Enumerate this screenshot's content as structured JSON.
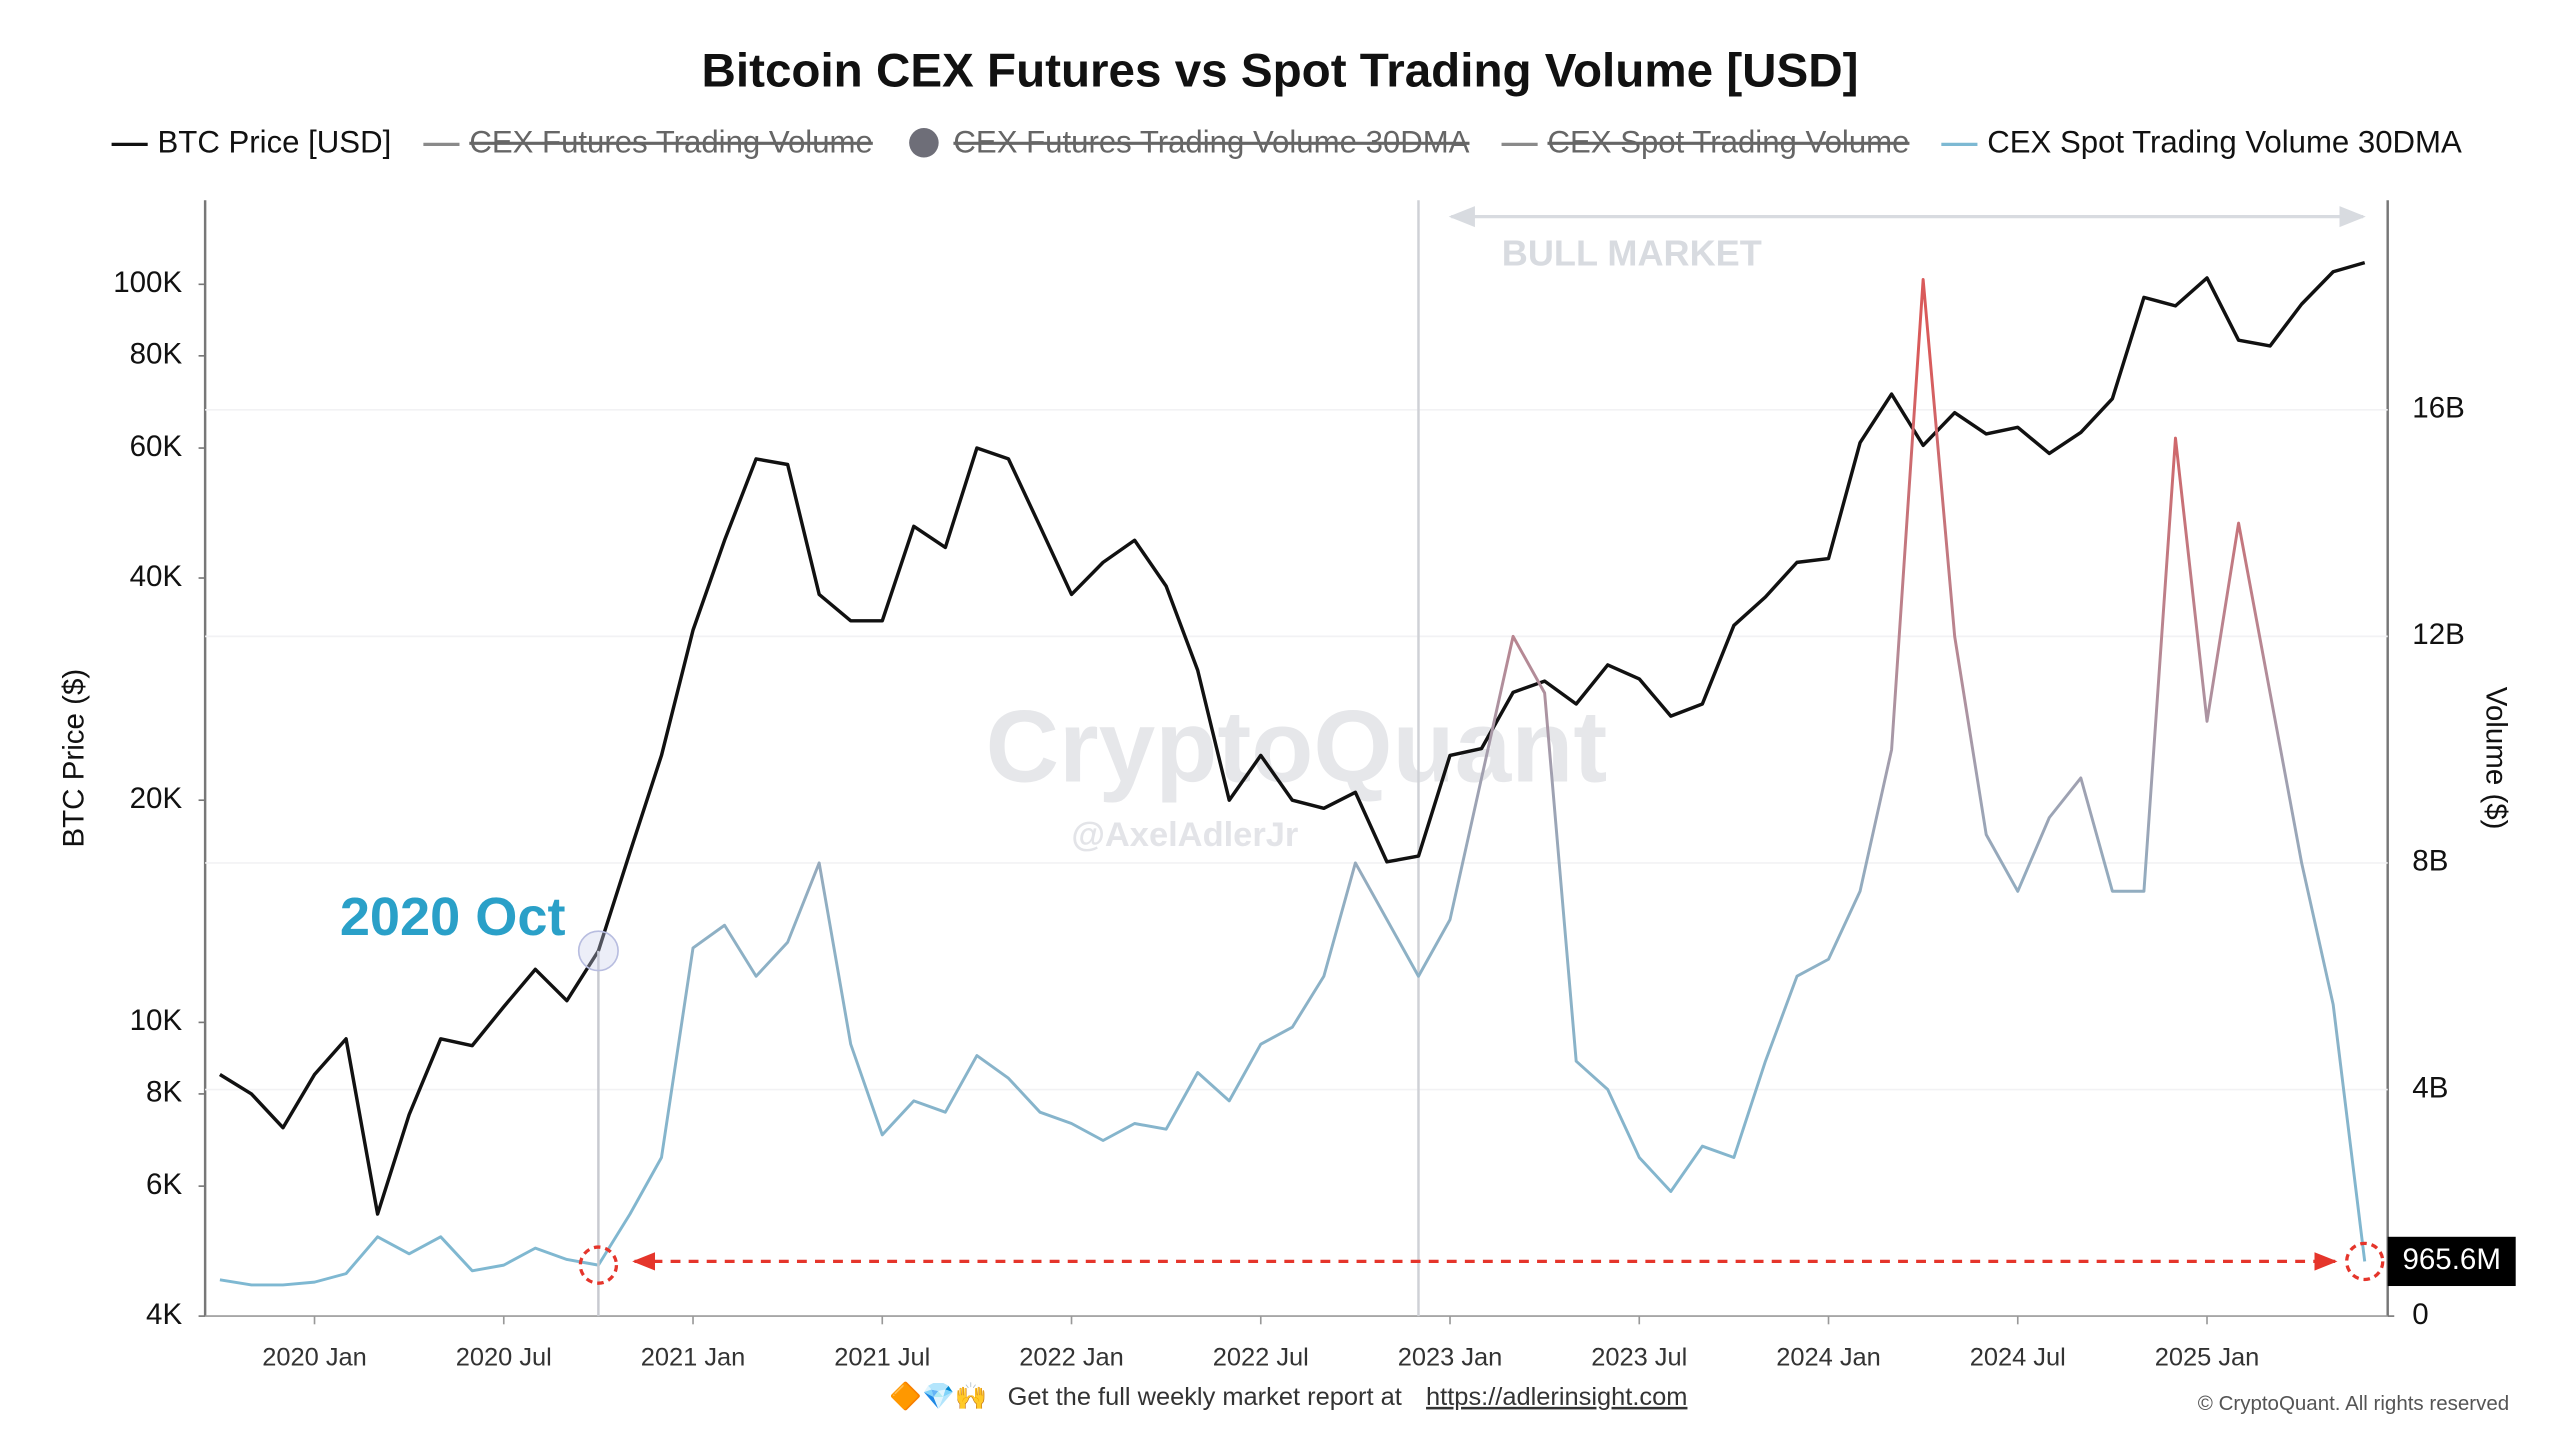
{
  "chart_data": {
    "type": "line",
    "title": "Bitcoin CEX Futures vs Spot Trading Volume [USD]",
    "y_label": "BTC Price ($)",
    "y2_label": "Volume ($)",
    "log_y": true,
    "grid": true,
    "x": [
      "2019 Oct",
      "2019 Nov",
      "2019 Dec",
      "2020 Jan",
      "2020 Feb",
      "2020 Mar",
      "2020 Apr",
      "2020 May",
      "2020 Jun",
      "2020 Jul",
      "2020 Aug",
      "2020 Sep",
      "2020 Oct",
      "2020 Nov",
      "2020 Dec",
      "2021 Jan",
      "2021 Feb",
      "2021 Mar",
      "2021 Apr",
      "2021 May",
      "2021 Jun",
      "2021 Jul",
      "2021 Aug",
      "2021 Sep",
      "2021 Oct",
      "2021 Nov",
      "2021 Dec",
      "2022 Jan",
      "2022 Feb",
      "2022 Mar",
      "2022 Apr",
      "2022 May",
      "2022 Jun",
      "2022 Jul",
      "2022 Aug",
      "2022 Sep",
      "2022 Oct",
      "2022 Nov",
      "2022 Dec",
      "2023 Jan",
      "2023 Feb",
      "2023 Mar",
      "2023 Apr",
      "2023 May",
      "2023 Jun",
      "2023 Jul",
      "2023 Aug",
      "2023 Sep",
      "2023 Oct",
      "2023 Nov",
      "2023 Dec",
      "2024 Jan",
      "2024 Feb",
      "2024 Mar",
      "2024 Apr",
      "2024 May",
      "2024 Jun",
      "2024 Jul",
      "2024 Aug",
      "2024 Sep",
      "2024 Oct",
      "2024 Nov",
      "2024 Dec",
      "2025 Jan",
      "2025 Feb",
      "2025 Mar",
      "2025 Apr",
      "2025 May",
      "2025 Jun"
    ],
    "xticks": [
      "2020 Jan",
      "2020 Jul",
      "2021 Jan",
      "2021 Jul",
      "2022 Jan",
      "2022 Jul",
      "2023 Jan",
      "2023 Jul",
      "2024 Jan",
      "2024 Jul",
      "2025 Jan"
    ],
    "ylim": [
      4000,
      130000
    ],
    "yticks": [
      {
        "value": 4000,
        "label": "4K"
      },
      {
        "value": 6000,
        "label": "6K"
      },
      {
        "value": 8000,
        "label": "8K"
      },
      {
        "value": 10000,
        "label": "10K"
      },
      {
        "value": 20000,
        "label": "20K"
      },
      {
        "value": 40000,
        "label": "40K"
      },
      {
        "value": 60000,
        "label": "60K"
      },
      {
        "value": 80000,
        "label": "80K"
      },
      {
        "value": 100000,
        "label": "100K"
      }
    ],
    "y2lim": [
      0,
      19700000000
    ],
    "y2ticks": [
      0,
      {
        "value": 4000000000,
        "label": "4B"
      },
      {
        "value": 8000000000,
        "label": "8B"
      },
      {
        "value": 12000000000,
        "label": "12B"
      },
      {
        "value": 16000000000,
        "label": "16B"
      }
    ],
    "series": [
      {
        "name": "BTC Price [USD]",
        "color": "#111111",
        "axis": "y",
        "values": [
          8500,
          8000,
          7200,
          8500,
          9500,
          5500,
          7500,
          9500,
          9300,
          10500,
          11800,
          10700,
          12500,
          17000,
          23000,
          34000,
          45000,
          58000,
          57000,
          38000,
          35000,
          35000,
          47000,
          44000,
          60000,
          58000,
          47000,
          38000,
          42000,
          45000,
          39000,
          30000,
          20000,
          23000,
          20000,
          19500,
          20500,
          16500,
          16800,
          23000,
          23500,
          28000,
          29000,
          27000,
          30500,
          29200,
          26000,
          27000,
          34500,
          37700,
          42000,
          42500,
          61000,
          71000,
          60500,
          67000,
          62700,
          64000,
          59000,
          63000,
          70000,
          96000,
          93500,
          102000,
          84000,
          82500,
          94000,
          104000,
          107000
        ]
      },
      {
        "name": "CEX Futures Trading Volume",
        "color": "#8a8a8a",
        "hidden": true
      },
      {
        "name": "CEX Futures Trading Volume 30DMA",
        "color": "#6e6e78",
        "hidden": true,
        "legend_marker": "circle"
      },
      {
        "name": "CEX Spot Trading Volume",
        "color": "#8a8a8a",
        "hidden": true
      },
      {
        "name": "CEX Spot Trading Volume 30DMA",
        "color": "#7db9d3",
        "axis": "y2",
        "color_stops": [
          {
            "value": 0,
            "color": "#7db9d3"
          },
          {
            "value": 7000000000,
            "color": "#8fb0c4"
          },
          {
            "value": 9500000000,
            "color": "#a0a0b0"
          },
          {
            "value": 12000000000,
            "color": "#b98590"
          },
          {
            "value": 17000000000,
            "color": "#d95a5a"
          }
        ],
        "values": [
          640000000,
          550000000,
          550000000,
          600000000,
          750000000,
          1400000000,
          1100000000,
          1400000000,
          800000000,
          900000000,
          1200000000,
          1000000000,
          900000000,
          1800000000,
          2800000000,
          6500000000,
          6900000000,
          6000000000,
          6600000000,
          8000000000,
          4800000000,
          3200000000,
          3800000000,
          3600000000,
          4600000000,
          4200000000,
          3600000000,
          3400000000,
          3100000000,
          3400000000,
          3300000000,
          4300000000,
          3800000000,
          4800000000,
          5100000000,
          6000000000,
          8000000000,
          7000000000,
          6000000000,
          7000000000,
          9500000000,
          12000000000,
          11000000000,
          4500000000,
          4000000000,
          2800000000,
          2200000000,
          3000000000,
          2800000000,
          4500000000,
          6000000000,
          6300000000,
          7500000000,
          10000000000,
          18300000000,
          12000000000,
          8500000000,
          7500000000,
          8800000000,
          9500000000,
          7500000000,
          7500000000,
          15500000000,
          10500000000,
          14000000000,
          11000000000,
          8000000000,
          5500000000,
          965600000
        ],
        "value_labels": [
          null,
          null,
          null,
          null,
          null,
          null,
          null,
          null,
          null,
          null,
          null,
          null,
          null,
          null,
          null,
          null,
          null,
          null,
          null,
          null,
          null,
          null,
          null,
          null,
          null,
          null,
          null,
          null,
          null,
          null,
          null,
          null,
          null,
          null,
          null,
          null,
          null,
          null,
          null,
          null,
          null,
          null,
          null,
          null,
          null,
          null,
          null,
          null,
          null,
          null,
          null,
          null,
          null,
          null,
          null,
          null,
          null,
          null,
          null,
          null,
          null,
          null,
          null,
          null,
          null,
          null,
          null,
          null,
          "965.6M"
        ]
      }
    ],
    "annotations": [
      {
        "text": "2020 Oct",
        "x": "2020 Oct",
        "color": "#2aa0c8",
        "line_color": "#e5352b"
      },
      {
        "text": "BULL MARKET",
        "x": "2022 Dec",
        "color": "#d8dbe0"
      }
    ],
    "watermark": {
      "text": "CryptoQuant",
      "handle": "@AxelAdlerJr"
    },
    "footer": {
      "emoji": "🔶💎🙌",
      "text": "Get the full weekly market report at",
      "link": "https://adlerinsight.com"
    },
    "copyright": "© CryptoQuant. All rights reserved"
  }
}
